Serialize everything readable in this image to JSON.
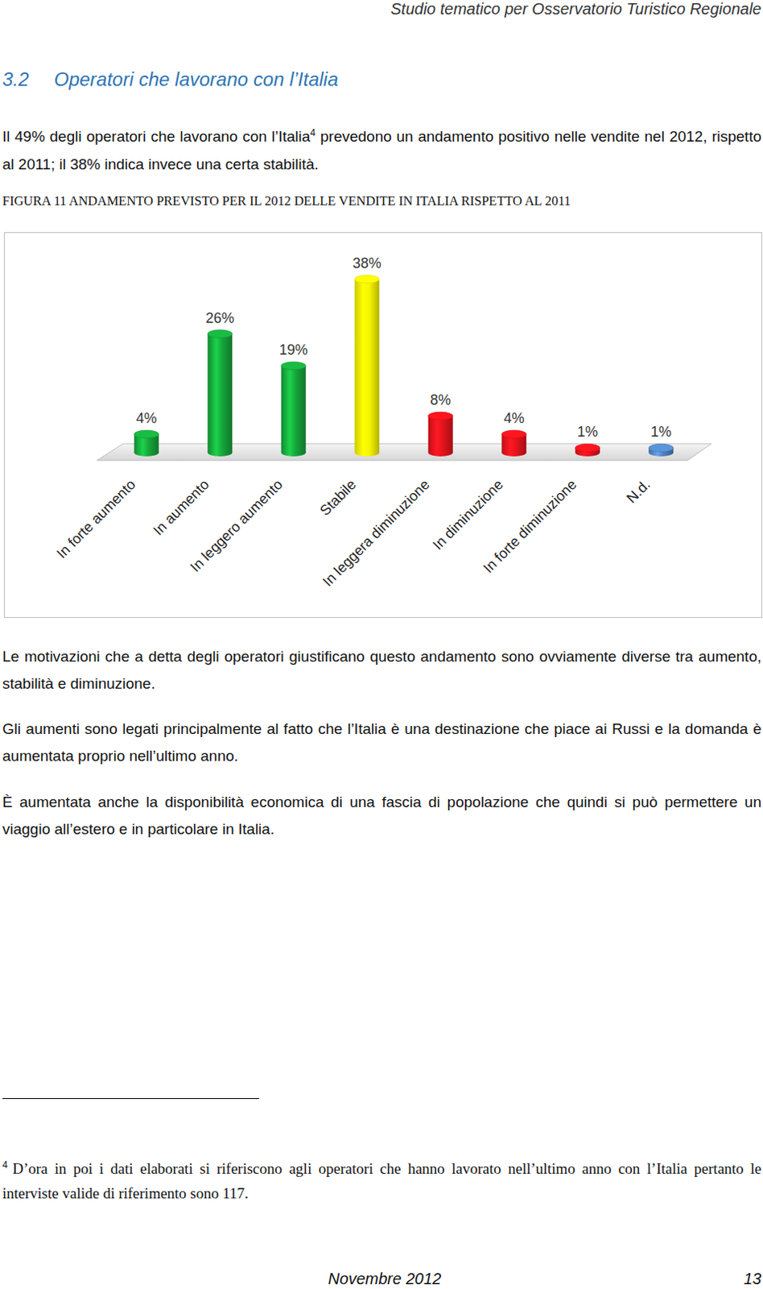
{
  "header": "Studio tematico per Osservatorio Turistico Regionale",
  "section": {
    "number": "3.2",
    "title": "Operatori che lavorano con l’Italia"
  },
  "intro": {
    "before": "Il 49% degli operatori che lavorano con l’Italia",
    "footnote_ref": "4",
    "after": " prevedono un andamento positivo nelle vendite nel 2012, rispetto al 2011; il 38% indica invece una certa stabilità."
  },
  "chart_data": {
    "type": "bar",
    "title": "FIGURA 11 ANDAMENTO PREVISTO PER IL 2012 DELLE VENDITE IN ITALIA RISPETTO AL 2011",
    "categories": [
      "In forte aumento",
      "In aumento",
      "In leggero aumento",
      "Stabile",
      "In leggera diminuzione",
      "In diminuzione",
      "In forte diminuzione",
      "N.d."
    ],
    "values": [
      4,
      26,
      19,
      38,
      8,
      4,
      1,
      1
    ],
    "value_labels": [
      "4%",
      "26%",
      "19%",
      "38%",
      "8%",
      "4%",
      "1%",
      "1%"
    ],
    "colors": [
      "#16a43a",
      "#16a43a",
      "#16a43a",
      "#f5f500",
      "#e3131b",
      "#e3131b",
      "#e3131b",
      "#4f81bd"
    ],
    "data_labels": true,
    "tick_labels": "x"
  },
  "paragraphs": [
    "Le motivazioni che a detta degli operatori giustificano questo andamento sono ovviamente diverse tra aumento, stabilità e diminuzione.",
    "Gli aumenti sono legati principalmente al fatto che l’Italia è una destinazione che piace ai Russi e la domanda è aumentata proprio nell’ultimo anno.",
    "È aumentata anche la disponibilità economica di una fascia di popolazione che quindi si può permettere un viaggio all’estero e in particolare in Italia."
  ],
  "footnote": {
    "marker": "4",
    "text": "D’ora in poi i dati elaborati si riferiscono agli operatori che hanno lavorato nell’ultimo anno con l’Italia pertanto le interviste valide di riferimento sono 117."
  },
  "footer": {
    "date": "Novembre 2012",
    "page": "13"
  }
}
